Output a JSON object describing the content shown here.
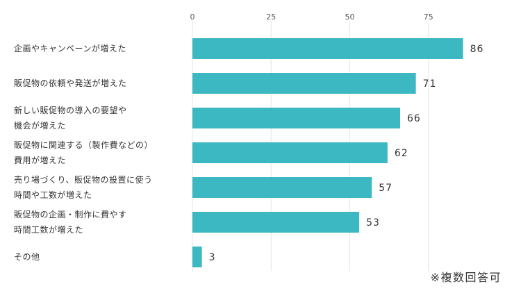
{
  "chart_data": {
    "type": "bar",
    "orientation": "horizontal",
    "categories": [
      [
        "企画やキャンペーンが増えた"
      ],
      [
        "販促物の依頼や発送が増えた"
      ],
      [
        "新しい販促物の導入の要望や",
        "機会が増えた"
      ],
      [
        "販促物に関連する（製作費などの）",
        "費用が増えた"
      ],
      [
        "売り場づくり、販促物の設置に使う",
        "時間や工数が増えた"
      ],
      [
        "販促物の企画・制作に費やす",
        "時間工数が増えた"
      ],
      [
        "その他"
      ]
    ],
    "values": [
      86,
      71,
      66,
      62,
      57,
      53,
      3
    ],
    "xlim": [
      0,
      100
    ],
    "xticks": [
      0,
      25,
      50,
      75
    ],
    "tick_labels": [
      "0",
      "25",
      "50",
      "75"
    ],
    "grid": true,
    "bar_color": "#3bb8c1",
    "grid_color": "#e6e6e6"
  },
  "footnote": "※複数回答可"
}
